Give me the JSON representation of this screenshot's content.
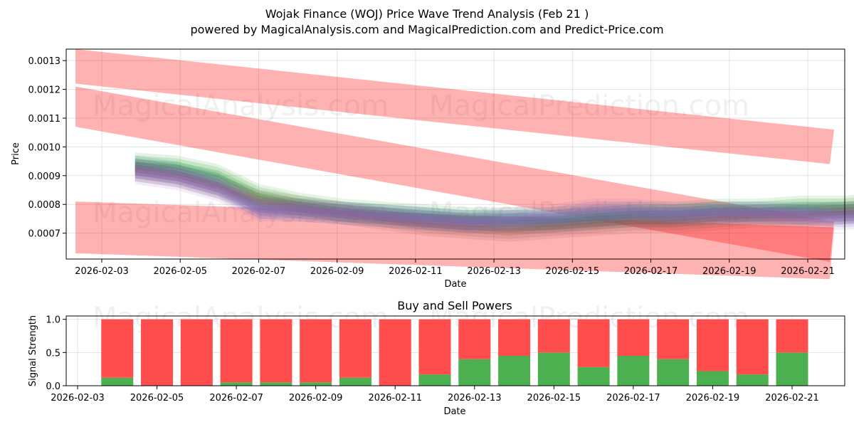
{
  "chart_data": [
    {
      "type": "area",
      "title": "Wojak Finance (WOJ) Price Wave Trend Analysis (Feb 21 )",
      "subtitle": "powered by MagicalAnalysis.com and MagicalPrediction.com and Predict-Price.com",
      "xlabel": "Date",
      "ylabel": "Price",
      "grid": true,
      "xlim": [
        "2026-02-02",
        "2026-02-21.9"
      ],
      "ylim": [
        0.00061,
        0.00134
      ],
      "x_ticks": [
        "2026-02-03",
        "2026-02-05",
        "2026-02-07",
        "2026-02-09",
        "2026-02-11",
        "2026-02-13",
        "2026-02-15",
        "2026-02-17",
        "2026-02-19",
        "2026-02-21"
      ],
      "y_ticks": [
        "0.0007",
        "0.0008",
        "0.0009",
        "0.0010",
        "0.0011",
        "0.0012",
        "0.0013"
      ],
      "watermarks": [
        "MagicalAnalysis.com",
        "MagicalPrediction.com"
      ],
      "bands": [
        {
          "name": "upper channel",
          "color": "#ff0000",
          "x": [
            0,
            19
          ],
          "center": [
            0.00128,
            0.001
          ],
          "width": 0.00012
        },
        {
          "name": "middle channel",
          "color": "#ff0000",
          "x": [
            0,
            19
          ],
          "center": [
            0.00114,
            0.00067
          ],
          "width": 0.00014
        },
        {
          "name": "lower channel",
          "color": "#ff0000",
          "x": [
            0,
            19
          ],
          "center": [
            0.00072,
            0.00063
          ],
          "width": 0.00018
        }
      ],
      "series": [
        {
          "name": "wave green",
          "color": "#2ca02c",
          "x": [
            0,
            1,
            2,
            3,
            4,
            5,
            6,
            7,
            8,
            9,
            10,
            11,
            12,
            13,
            14,
            15,
            16,
            17,
            18
          ],
          "values": [
            0.00094,
            0.00093,
            0.0009,
            0.00083,
            0.0008,
            0.00078,
            0.00077,
            0.00076,
            0.00075,
            0.00075,
            0.00075,
            0.00076,
            0.00077,
            0.00077,
            0.00078,
            0.00078,
            0.00079,
            0.00079,
            0.0008
          ]
        },
        {
          "name": "wave blue",
          "color": "#1f77b4",
          "x": [
            0,
            1,
            2,
            3,
            4,
            5,
            6,
            7,
            8,
            9,
            10,
            11,
            12,
            13,
            14,
            15,
            16,
            17,
            18
          ],
          "values": [
            0.00093,
            0.00091,
            0.00087,
            0.00079,
            0.00078,
            0.00077,
            0.00076,
            0.00075,
            0.00074,
            0.00074,
            0.00074,
            0.00075,
            0.00076,
            0.00076,
            0.00077,
            0.00077,
            0.00077,
            0.00077,
            0.00077
          ]
        },
        {
          "name": "wave brown",
          "color": "#8c564b",
          "x": [
            0,
            1,
            2,
            3,
            4,
            5,
            6,
            7,
            8,
            9,
            10,
            11,
            12,
            13,
            14,
            15,
            16,
            17,
            18
          ],
          "values": [
            0.00092,
            0.0009,
            0.00086,
            0.00081,
            0.00079,
            0.00077,
            0.00075,
            0.00073,
            0.00072,
            0.00071,
            0.00072,
            0.00073,
            0.00074,
            0.00074,
            0.00075,
            0.00076,
            0.00076,
            0.00077,
            0.00078
          ]
        },
        {
          "name": "wave purple",
          "color": "#9467bd",
          "x": [
            0,
            1,
            2,
            3,
            4,
            5,
            6,
            7,
            8,
            9,
            10,
            11,
            12,
            13,
            14,
            15,
            16,
            17,
            18
          ],
          "values": [
            0.00091,
            0.00089,
            0.00085,
            0.00078,
            0.00078,
            0.00077,
            0.00076,
            0.00075,
            0.00074,
            0.00075,
            0.00076,
            0.00078,
            0.00078,
            0.00077,
            0.00077,
            0.00077,
            0.00076,
            0.00075,
            0.00076
          ]
        }
      ]
    },
    {
      "type": "bar",
      "title": "Buy and Sell Powers",
      "xlabel": "Date",
      "ylabel": "Signal Strength",
      "grid": true,
      "ylim": [
        0,
        1.05
      ],
      "x_ticks": [
        "2026-02-03",
        "2026-02-05",
        "2026-02-07",
        "2026-02-09",
        "2026-02-11",
        "2026-02-13",
        "2026-02-15",
        "2026-02-17",
        "2026-02-19",
        "2026-02-21"
      ],
      "y_ticks": [
        "0.0",
        "0.5",
        "1.0"
      ],
      "watermarks": [
        "MagicalAnalysis.com",
        "MagicalPrediction.com"
      ],
      "categories": [
        "2026-02-04",
        "2026-02-05",
        "2026-02-06",
        "2026-02-07",
        "2026-02-08",
        "2026-02-09",
        "2026-02-10",
        "2026-02-11",
        "2026-02-12",
        "2026-02-13",
        "2026-02-14",
        "2026-02-15",
        "2026-02-16",
        "2026-02-17",
        "2026-02-18",
        "2026-02-19",
        "2026-02-20",
        "2026-02-21"
      ],
      "series": [
        {
          "name": "Buy",
          "color": "#4caf50",
          "values": [
            0.12,
            0.0,
            0.0,
            0.05,
            0.05,
            0.05,
            0.12,
            0.0,
            0.17,
            0.4,
            0.45,
            0.5,
            0.28,
            0.45,
            0.4,
            0.22,
            0.17,
            0.5
          ]
        },
        {
          "name": "Sell",
          "color": "#ff4c4c",
          "values": [
            0.88,
            1.0,
            1.0,
            0.95,
            0.95,
            0.95,
            0.88,
            1.0,
            0.83,
            0.6,
            0.55,
            0.5,
            0.72,
            0.55,
            0.6,
            0.78,
            0.83,
            0.5
          ]
        }
      ]
    }
  ]
}
